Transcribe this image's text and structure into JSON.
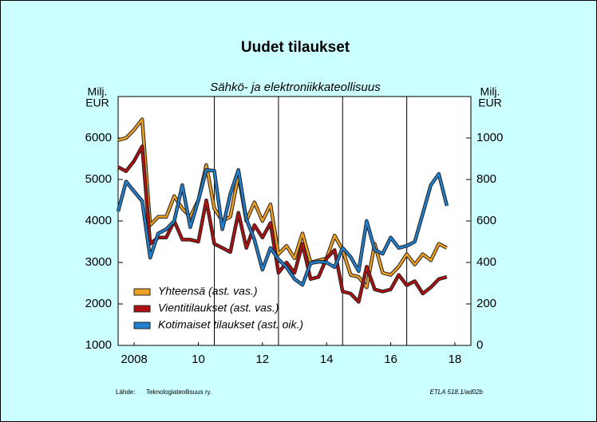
{
  "chart_data": {
    "type": "line",
    "title": "Uudet tilaukset",
    "subtitle": "Sähkö- ja elektroniikkateollisuus",
    "ylabel": [
      "Milj.",
      "EUR"
    ],
    "y2label": [
      "Milj.",
      "EUR"
    ],
    "source_label": "Lähde:",
    "source": "Teknologiateollisuus ry.",
    "code": "ETLA 518.1/ad02b",
    "x": [
      2008,
      2008.25,
      2008.5,
      2008.75,
      2009,
      2009.25,
      2009.5,
      2009.75,
      2010,
      2010.25,
      2010.5,
      2010.75,
      2011,
      2011.25,
      2011.5,
      2011.75,
      2012,
      2012.25,
      2012.5,
      2012.75,
      2013,
      2013.25,
      2013.5,
      2013.75,
      2014,
      2014.25,
      2014.5,
      2014.75,
      2015,
      2015.25,
      2015.5,
      2015.75,
      2016,
      2016.25,
      2016.5,
      2016.75,
      2017,
      2017.25,
      2017.5,
      2017.75,
      2018,
      2018.25
    ],
    "xlim": [
      2008,
      2019
    ],
    "xticks": [
      {
        "value": 2008.5,
        "label": "2008"
      },
      {
        "value": 2010.5,
        "label": "10"
      },
      {
        "value": 2012.5,
        "label": "12"
      },
      {
        "value": 2014.5,
        "label": "14"
      },
      {
        "value": 2016.5,
        "label": "16"
      },
      {
        "value": 2018.5,
        "label": "18"
      }
    ],
    "xgrid": [
      2011,
      2013,
      2015,
      2017
    ],
    "ylim": [
      1000,
      7000
    ],
    "yticks": [
      1000,
      2000,
      3000,
      4000,
      5000,
      6000
    ],
    "y2lim": [
      0,
      1200
    ],
    "y2ticks": [
      0,
      200,
      400,
      600,
      800,
      1000
    ],
    "legend": "lower left",
    "series": [
      {
        "name": "Yhteensä (ast. vas.)",
        "color": "#f0a020",
        "values": [
          5950,
          6000,
          6200,
          6450,
          3900,
          4100,
          4100,
          4600,
          4300,
          4100,
          4500,
          5350,
          4300,
          4000,
          4100,
          5100,
          4000,
          4450,
          4000,
          4400,
          3200,
          3400,
          3100,
          3700,
          3000,
          3050,
          3100,
          3650,
          3300,
          2700,
          2650,
          2400,
          3450,
          2750,
          2700,
          2900,
          3200,
          2950,
          3200,
          3050,
          3450,
          3350
        ]
      },
      {
        "name": "Vientitilaukset (ast. vas.)",
        "color": "#b01010",
        "values": [
          5300,
          5200,
          5450,
          5800,
          3450,
          3600,
          3600,
          4000,
          3550,
          3550,
          3500,
          4500,
          3450,
          3350,
          3250,
          4200,
          3350,
          3900,
          3600,
          3950,
          2750,
          3000,
          2750,
          3450,
          2600,
          2650,
          3100,
          3300,
          2300,
          2250,
          2050,
          2900,
          2350,
          2300,
          2350,
          2700,
          2450,
          2550,
          2250,
          2400,
          2600,
          2650
        ]
      },
      {
        "name": "Kotimaiset tilaukset (ast. oik.)",
        "color": "#2080d0",
        "axis": "y2",
        "values": [
          646,
          790,
          742,
          696,
          423,
          540,
          560,
          600,
          773,
          570,
          700,
          846,
          842,
          560,
          730,
          846,
          608,
          510,
          365,
          470,
          415,
          377,
          320,
          292,
          396,
          404,
          400,
          377,
          470,
          427,
          358,
          600,
          460,
          442,
          520,
          470,
          480,
          500,
          635,
          773,
          827,
          673
        ]
      }
    ]
  }
}
